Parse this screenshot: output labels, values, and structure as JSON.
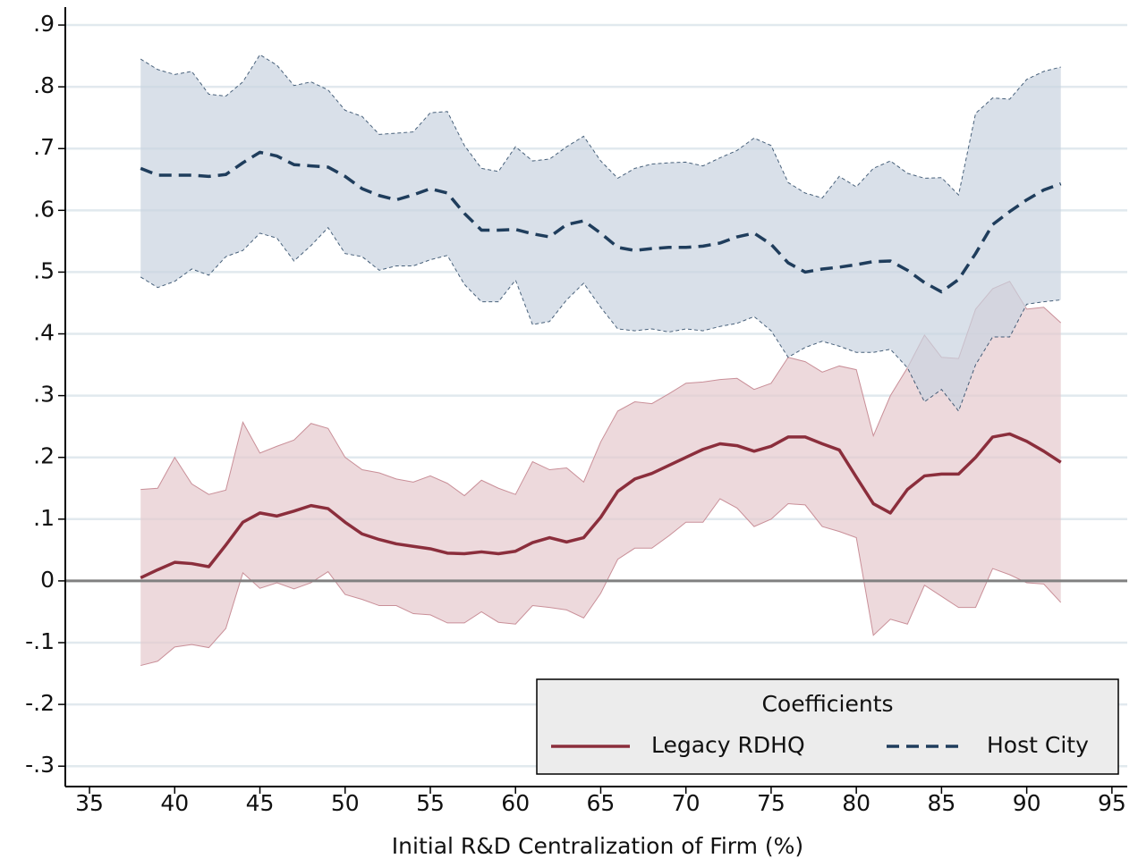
{
  "chart_data": {
    "type": "line",
    "xlabel": "Initial R&D Centralization of Firm (%)",
    "legend_title": "Coefficients",
    "legend": "lower right",
    "grid": true,
    "hline": 0,
    "xlim": [
      33.58,
      95.9
    ],
    "ylim": [
      -0.333,
      0.929
    ],
    "xticks": [
      35,
      40,
      45,
      50,
      55,
      60,
      65,
      70,
      75,
      80,
      85,
      90,
      95
    ],
    "yticks": [
      {
        "value": -0.3,
        "label": "-.3"
      },
      {
        "value": -0.2,
        "label": "-.2"
      },
      {
        "value": -0.1,
        "label": "-.1"
      },
      0,
      {
        "value": 0.1,
        "label": ".1"
      },
      {
        "value": 0.2,
        "label": ".2"
      },
      {
        "value": 0.3,
        "label": ".3"
      },
      {
        "value": 0.4,
        "label": ".4"
      },
      {
        "value": 0.5,
        "label": ".5"
      },
      {
        "value": 0.6,
        "label": ".6"
      },
      {
        "value": 0.7,
        "label": ".7"
      },
      {
        "value": 0.8,
        "label": ".8"
      },
      {
        "value": 0.9,
        "label": ".9"
      }
    ],
    "x": [
      38,
      39,
      40,
      41,
      42,
      43,
      44,
      45,
      46,
      47,
      48,
      49,
      50,
      51,
      52,
      53,
      54,
      55,
      56,
      57,
      58,
      59,
      60,
      61,
      62,
      63,
      64,
      65,
      66,
      67,
      68,
      69,
      70,
      71,
      72,
      73,
      74,
      75,
      76,
      77,
      78,
      79,
      80,
      81,
      82,
      83,
      84,
      85,
      86,
      87,
      88,
      89,
      90,
      91,
      92
    ],
    "series": [
      {
        "name": "Legacy RDHQ",
        "color": "#8b2e3c",
        "band_color": "#e6c9cd",
        "dashed": false,
        "values": [
          0.005,
          0.018,
          0.03,
          0.028,
          0.023,
          0.058,
          0.095,
          0.11,
          0.105,
          0.113,
          0.122,
          0.117,
          0.095,
          0.076,
          0.067,
          0.06,
          0.056,
          0.052,
          0.045,
          0.044,
          0.047,
          0.044,
          0.048,
          0.062,
          0.07,
          0.063,
          0.07,
          0.103,
          0.145,
          0.165,
          0.174,
          0.187,
          0.2,
          0.213,
          0.222,
          0.219,
          0.21,
          0.218,
          0.233,
          0.233,
          0.222,
          0.212,
          0.168,
          0.125,
          0.11,
          0.148,
          0.17,
          0.173,
          0.173,
          0.2,
          0.233,
          0.238,
          0.226,
          0.21,
          0.192
        ],
        "upper": [
          0.148,
          0.15,
          0.2,
          0.157,
          0.14,
          0.147,
          0.257,
          0.207,
          0.218,
          0.228,
          0.255,
          0.247,
          0.2,
          0.18,
          0.175,
          0.165,
          0.16,
          0.17,
          0.158,
          0.138,
          0.163,
          0.15,
          0.14,
          0.193,
          0.18,
          0.183,
          0.16,
          0.225,
          0.275,
          0.29,
          0.287,
          0.303,
          0.32,
          0.322,
          0.326,
          0.328,
          0.31,
          0.32,
          0.362,
          0.355,
          0.338,
          0.348,
          0.342,
          0.235,
          0.3,
          0.345,
          0.398,
          0.362,
          0.36,
          0.44,
          0.473,
          0.485,
          0.44,
          0.443,
          0.418
        ],
        "lower": [
          -0.137,
          -0.13,
          -0.107,
          -0.103,
          -0.108,
          -0.077,
          0.013,
          -0.012,
          -0.003,
          -0.013,
          -0.003,
          0.015,
          -0.022,
          -0.03,
          -0.04,
          -0.04,
          -0.053,
          -0.055,
          -0.068,
          -0.068,
          -0.05,
          -0.067,
          -0.07,
          -0.04,
          -0.043,
          -0.047,
          -0.06,
          -0.02,
          0.035,
          0.053,
          0.053,
          0.073,
          0.095,
          0.095,
          0.133,
          0.118,
          0.088,
          0.1,
          0.125,
          0.123,
          0.088,
          0.08,
          0.07,
          -0.088,
          -0.062,
          -0.07,
          -0.007,
          -0.025,
          -0.043,
          -0.043,
          0.02,
          0.01,
          -0.003,
          -0.005,
          -0.035
        ]
      },
      {
        "name": "Host City",
        "color": "#1f3d5c",
        "band_color": "#c9d3df",
        "dashed": true,
        "values": [
          0.668,
          0.657,
          0.657,
          0.657,
          0.655,
          0.658,
          0.677,
          0.694,
          0.688,
          0.674,
          0.672,
          0.67,
          0.655,
          0.635,
          0.624,
          0.617,
          0.625,
          0.635,
          0.628,
          0.595,
          0.568,
          0.568,
          0.569,
          0.562,
          0.557,
          0.577,
          0.583,
          0.563,
          0.54,
          0.535,
          0.538,
          0.54,
          0.54,
          0.542,
          0.547,
          0.557,
          0.563,
          0.545,
          0.515,
          0.5,
          0.505,
          0.508,
          0.512,
          0.517,
          0.518,
          0.503,
          0.483,
          0.468,
          0.488,
          0.53,
          0.577,
          0.598,
          0.617,
          0.633,
          0.643
        ],
        "upper": [
          0.845,
          0.828,
          0.82,
          0.825,
          0.788,
          0.785,
          0.808,
          0.852,
          0.835,
          0.802,
          0.808,
          0.795,
          0.762,
          0.752,
          0.723,
          0.725,
          0.727,
          0.758,
          0.76,
          0.705,
          0.668,
          0.663,
          0.703,
          0.68,
          0.683,
          0.703,
          0.72,
          0.68,
          0.652,
          0.668,
          0.675,
          0.677,
          0.678,
          0.672,
          0.685,
          0.697,
          0.717,
          0.705,
          0.645,
          0.628,
          0.62,
          0.655,
          0.638,
          0.668,
          0.68,
          0.66,
          0.652,
          0.653,
          0.625,
          0.757,
          0.782,
          0.78,
          0.812,
          0.825,
          0.832
        ],
        "lower": [
          0.492,
          0.475,
          0.485,
          0.505,
          0.495,
          0.525,
          0.535,
          0.563,
          0.555,
          0.518,
          0.543,
          0.572,
          0.53,
          0.525,
          0.503,
          0.51,
          0.51,
          0.52,
          0.527,
          0.48,
          0.452,
          0.452,
          0.487,
          0.415,
          0.42,
          0.455,
          0.482,
          0.443,
          0.408,
          0.405,
          0.408,
          0.403,
          0.408,
          0.405,
          0.412,
          0.417,
          0.428,
          0.405,
          0.362,
          0.378,
          0.388,
          0.38,
          0.37,
          0.37,
          0.375,
          0.345,
          0.29,
          0.31,
          0.275,
          0.35,
          0.395,
          0.395,
          0.448,
          0.452,
          0.455
        ]
      }
    ]
  }
}
